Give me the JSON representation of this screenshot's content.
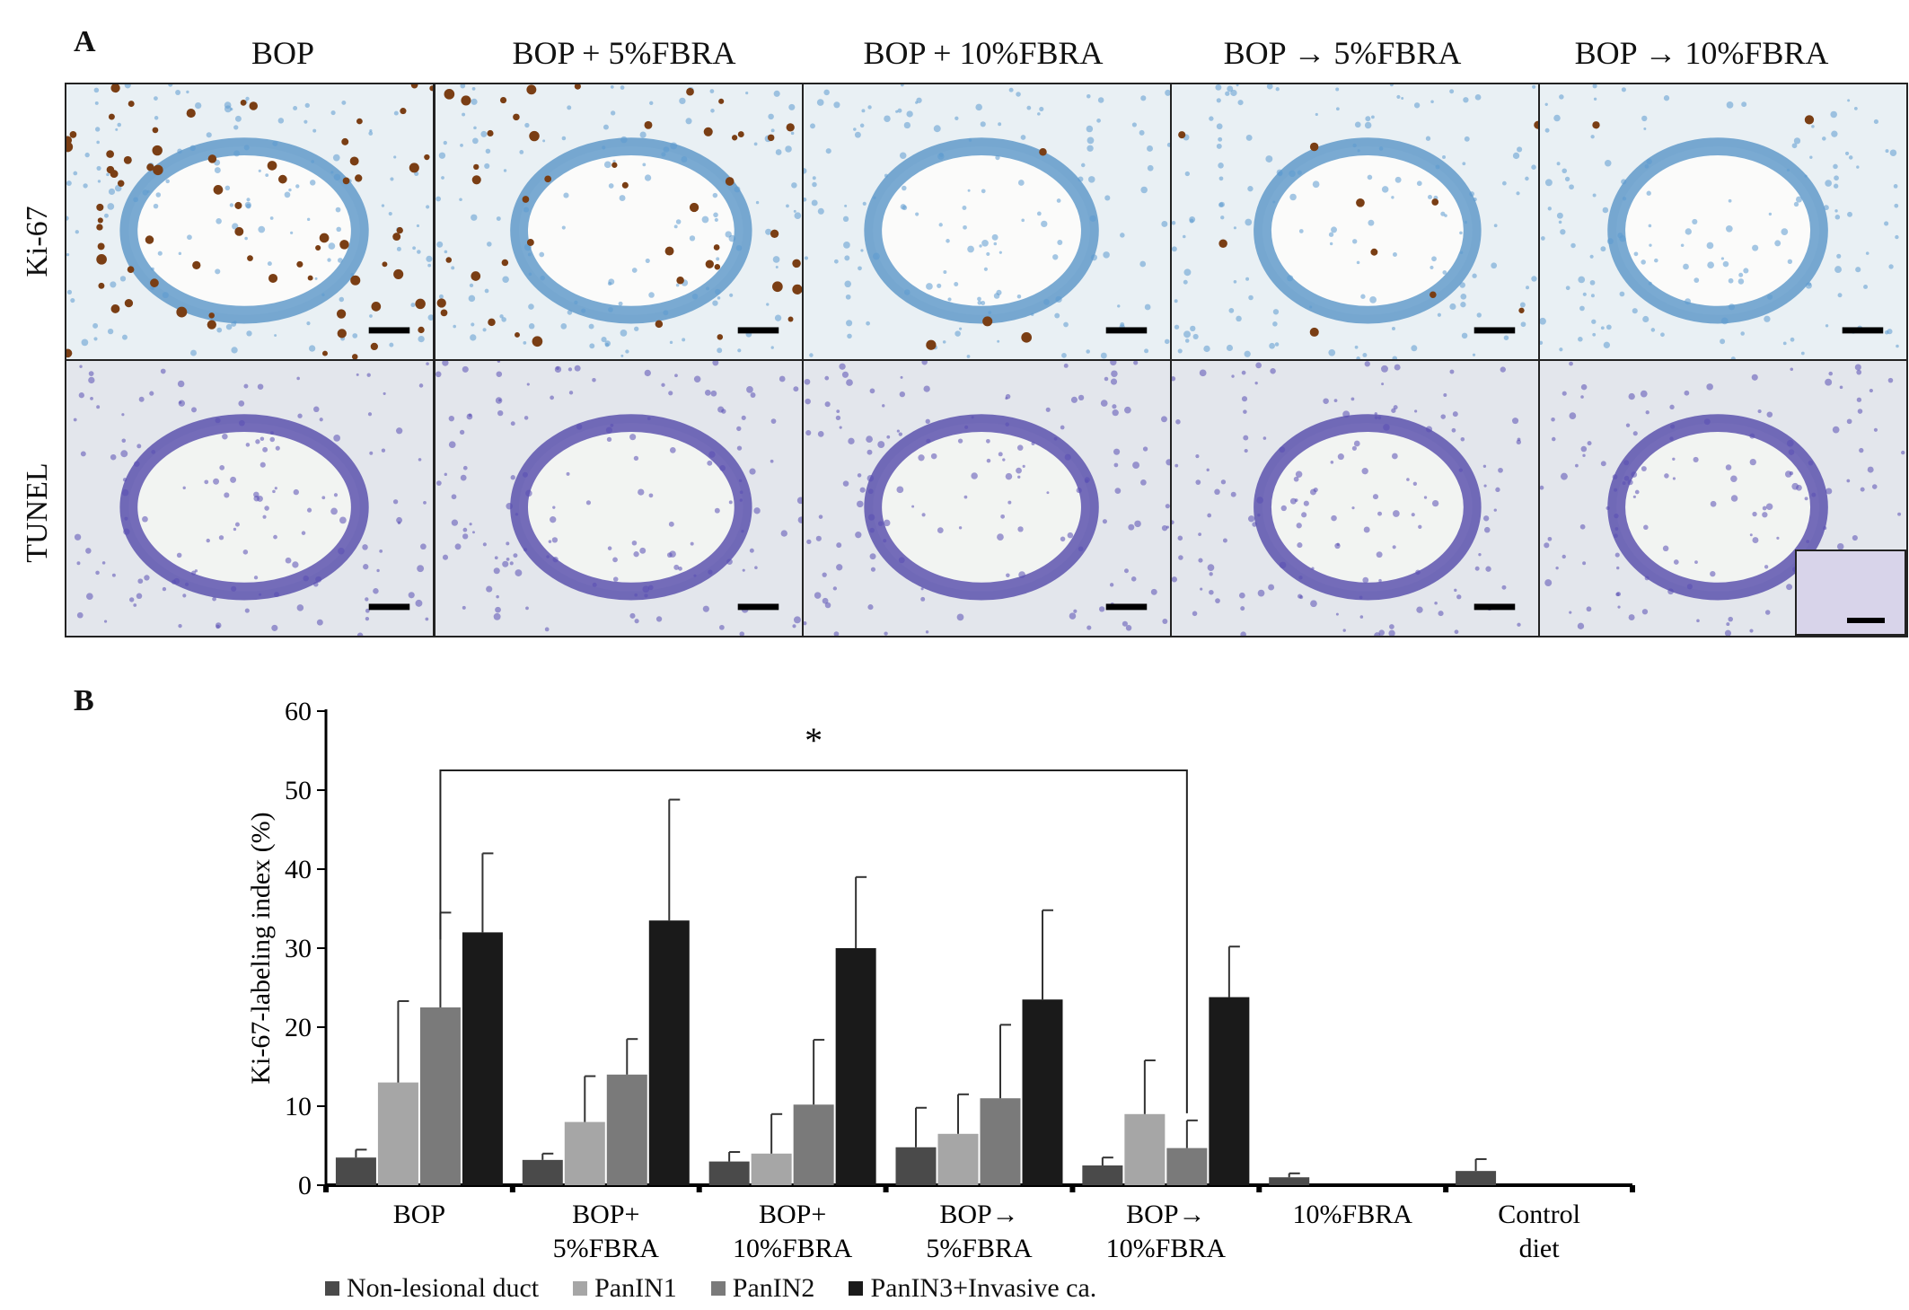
{
  "panelA": {
    "letter": "A",
    "columns": [
      "BOP",
      "BOP + 5%FBRA",
      "BOP + 10%FBRA",
      "BOP → 5%FBRA",
      "BOP → 10%FBRA"
    ],
    "rows": [
      "Ki-67",
      "TUNEL"
    ]
  },
  "panelB": {
    "letter": "B"
  },
  "chart_data": {
    "type": "bar",
    "categories": [
      "BOP",
      "BOP+\n5%FBRA",
      "BOP+\n10%FBRA",
      "BOP→\n5%FBRA",
      "BOP→\n10%FBRA",
      "10%FBRA",
      "Control\ndiet"
    ],
    "ylabel": "Ki-67-labeling index (%)",
    "xlabel": "",
    "ylim": [
      0,
      60
    ],
    "yticks": [
      0,
      10,
      20,
      30,
      40,
      50,
      60
    ],
    "series": [
      {
        "name": "Non-lesional duct",
        "color": "#4a4a4a",
        "values": [
          3.5,
          3.2,
          3.0,
          4.8,
          2.5,
          1.0,
          1.8
        ],
        "errors": [
          1.0,
          0.8,
          1.2,
          5.0,
          1.0,
          0.5,
          1.5
        ]
      },
      {
        "name": "PanIN1",
        "color": "#a6a6a6",
        "values": [
          13.0,
          8.0,
          4.0,
          6.5,
          9.0,
          null,
          null
        ],
        "errors": [
          10.3,
          5.8,
          5.0,
          5.0,
          6.8,
          null,
          null
        ]
      },
      {
        "name": "PanIN2",
        "color": "#7a7a7a",
        "values": [
          22.5,
          14.0,
          10.2,
          11.0,
          4.7,
          null,
          null
        ],
        "errors": [
          12.0,
          4.5,
          8.2,
          9.3,
          3.5,
          null,
          null
        ]
      },
      {
        "name": "PanIN3+Invasive ca.",
        "color": "#1a1a1a",
        "values": [
          32.0,
          33.5,
          30.0,
          23.5,
          23.8,
          null,
          null
        ],
        "errors": [
          10.0,
          15.3,
          9.0,
          11.3,
          6.4,
          null,
          null
        ]
      }
    ],
    "annotation": "*",
    "legend_position": "bottom"
  }
}
